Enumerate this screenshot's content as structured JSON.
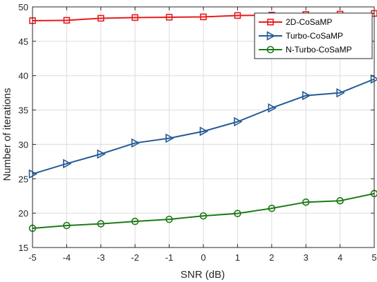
{
  "chart_data": {
    "type": "line",
    "xlabel": "SNR (dB)",
    "ylabel": "Number of iterations",
    "x": [
      -5,
      -4,
      -3,
      -2,
      -1,
      0,
      1,
      2,
      3,
      4,
      5
    ],
    "xlim": [
      -5,
      5
    ],
    "ylim": [
      15,
      50
    ],
    "xticks": [
      "-5",
      "-4",
      "-3",
      "-2",
      "-1",
      "0",
      "1",
      "2",
      "3",
      "4",
      "5"
    ],
    "yticks": [
      "15",
      "20",
      "25",
      "30",
      "35",
      "40",
      "45",
      "50"
    ],
    "grid": true,
    "legend_position": "top-right",
    "series": [
      {
        "name": "2D-CoSaMP",
        "color": "#e8191b",
        "marker": "square",
        "values": [
          48.0,
          48.05,
          48.35,
          48.45,
          48.5,
          48.55,
          48.75,
          48.8,
          48.9,
          48.95,
          49.05
        ]
      },
      {
        "name": "Turbo-CoSaMP",
        "color": "#235a96",
        "marker": "triangle-right",
        "values": [
          25.7,
          27.2,
          28.6,
          30.2,
          30.9,
          31.9,
          33.3,
          35.3,
          37.1,
          37.5,
          39.5
        ]
      },
      {
        "name": "N-Turbo-CoSaMP",
        "color": "#1a7a14",
        "marker": "circle",
        "values": [
          17.8,
          18.2,
          18.45,
          18.8,
          19.1,
          19.6,
          19.95,
          20.7,
          21.6,
          21.8,
          22.85
        ]
      }
    ]
  }
}
